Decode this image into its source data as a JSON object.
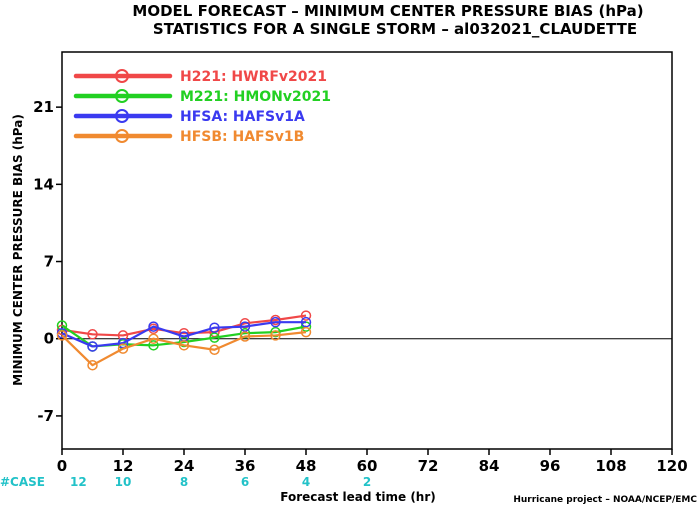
{
  "chart_data": {
    "type": "line",
    "title": "MODEL FORECAST – MINIMUM CENTER PRESSURE BIAS (hPa)",
    "subtitle": "STATISTICS FOR A SINGLE STORM – al032021_CLAUDETTE",
    "xlabel": "Forecast lead time (hr)",
    "ylabel": "MINIMUM CENTER PRESSURE BIAS (hPa)",
    "xlim": [
      0,
      120
    ],
    "ylim": [
      -10,
      26
    ],
    "xticks": [
      0,
      12,
      24,
      36,
      48,
      60,
      72,
      84,
      96,
      108,
      120
    ],
    "yticks": [
      -7,
      0,
      7,
      14,
      21
    ],
    "zero_line": true,
    "legend_position": "top-left",
    "x": [
      0,
      6,
      12,
      18,
      24,
      30,
      36,
      42,
      48
    ],
    "series": [
      {
        "name": "H221: HWRFv2021",
        "color": "#f04848",
        "values": [
          0.8,
          0.4,
          0.3,
          0.9,
          0.5,
          0.6,
          1.4,
          1.7,
          2.1
        ]
      },
      {
        "name": "M221: HMONv2021",
        "color": "#22d022",
        "values": [
          1.2,
          -0.7,
          -0.5,
          -0.6,
          -0.3,
          0.1,
          0.5,
          0.6,
          1.1
        ]
      },
      {
        "name": "HFSA: HAFSv1A",
        "color": "#3a3af0",
        "values": [
          0.5,
          -0.7,
          -0.4,
          1.1,
          0.2,
          1.0,
          1.1,
          1.5,
          1.5
        ]
      },
      {
        "name": "HFSB: HAFSv1B",
        "color": "#f08a30",
        "values": [
          0.3,
          -2.4,
          -0.9,
          0.0,
          -0.6,
          -1.0,
          0.2,
          0.3,
          0.6
        ]
      }
    ],
    "case_label": "#CASE",
    "case_counts": [
      {
        "x": 0,
        "count": "12"
      },
      {
        "x": 12,
        "count": "10"
      },
      {
        "x": 24,
        "count": "8"
      },
      {
        "x": 36,
        "count": "6"
      },
      {
        "x": 48,
        "count": "4"
      },
      {
        "x": 60,
        "count": "2"
      }
    ],
    "credit": "Hurricane project – NOAA/NCEP/EMC"
  }
}
